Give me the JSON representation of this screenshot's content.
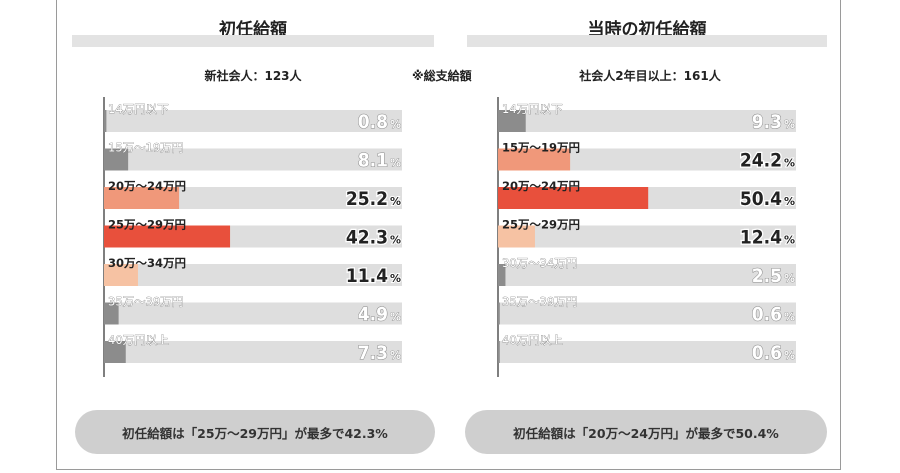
{
  "note": "※総支給額",
  "colors": {
    "track": "#dedede",
    "axis": "#555555",
    "highlight_1": "#e8503c",
    "highlight_2": "#f0987a",
    "highlight_3": "#f6c2a3",
    "muted": "#8c8c8c",
    "muted_text": "#b4b4b4"
  },
  "chart_data": [
    {
      "type": "bar",
      "orientation": "horizontal",
      "title": "初任給額",
      "subtitle": "新社会人：123人",
      "categories": [
        "14万円以下",
        "15万～19万円",
        "20万～24万円",
        "25万～29万円",
        "30万～34万円",
        "35万～39万円",
        "40万円以上"
      ],
      "values": [
        0.8,
        8.1,
        25.2,
        42.3,
        11.4,
        4.9,
        7.3
      ],
      "labels": [
        "0.8",
        "8.1",
        "25.2",
        "42.3",
        "11.4",
        "4.9",
        "7.3"
      ],
      "unit": "%",
      "xlim": [
        0,
        100
      ],
      "bar_colors": [
        "muted",
        "muted",
        "highlight_2",
        "highlight_1",
        "highlight_3",
        "muted",
        "muted"
      ],
      "summary": "初任給額は「25万～29万円」が最多で42.3%"
    },
    {
      "type": "bar",
      "orientation": "horizontal",
      "title": "当時の初任給額",
      "subtitle": "社会人2年目以上：161人",
      "categories": [
        "14万円以下",
        "15万～19万円",
        "20万～24万円",
        "25万～29万円",
        "30万～34万円",
        "35万～39万円",
        "40万円以上"
      ],
      "values": [
        9.3,
        24.2,
        50.4,
        12.4,
        2.5,
        0.6,
        0.6
      ],
      "labels": [
        "9.3",
        "24.2",
        "50.4",
        "12.4",
        "2.5",
        "0.6",
        "0.6"
      ],
      "unit": "%",
      "xlim": [
        0,
        100
      ],
      "bar_colors": [
        "muted",
        "highlight_2",
        "highlight_1",
        "highlight_3",
        "muted",
        "muted",
        "muted"
      ],
      "summary": "初任給額は「20万～24万円」が最多で50.4%"
    }
  ]
}
